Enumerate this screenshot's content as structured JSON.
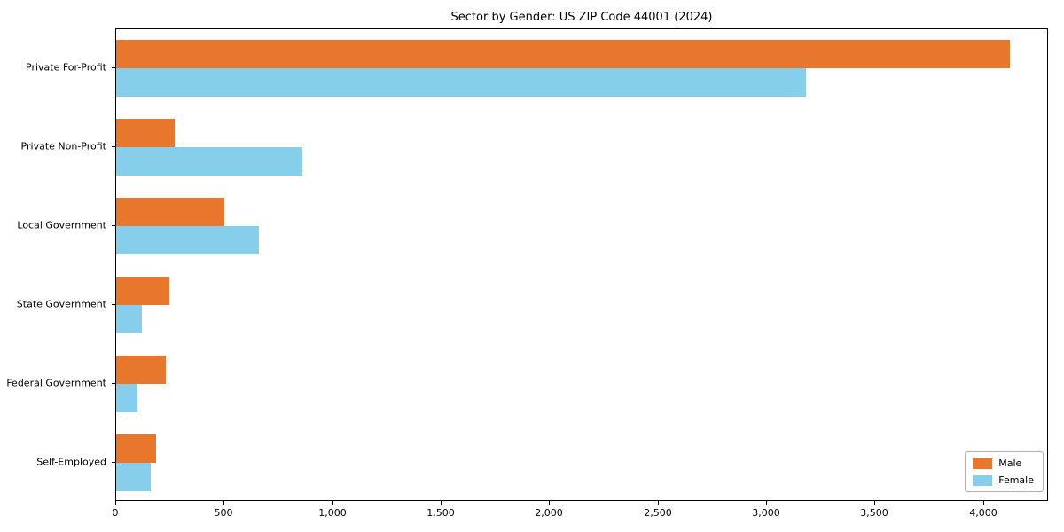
{
  "title": "Sector by Gender: US ZIP Code 44001 (2024)",
  "chart_data": {
    "type": "bar",
    "orientation": "horizontal",
    "title": "Sector by Gender: US ZIP Code 44001 (2024)",
    "categories": [
      "Private For-Profit",
      "Private Non-Profit",
      "Local Government",
      "State Government",
      "Federal Government",
      "Self-Employed"
    ],
    "series": [
      {
        "name": "Male",
        "color": "#e8762d",
        "values": [
          4120,
          270,
          500,
          245,
          230,
          185
        ]
      },
      {
        "name": "Female",
        "color": "#87ceeb",
        "values": [
          3180,
          860,
          660,
          120,
          100,
          160
        ]
      }
    ],
    "xlim": [
      0,
      4300
    ],
    "xticks": [
      0,
      500,
      1000,
      1500,
      2000,
      2500,
      3000,
      3500,
      4000
    ],
    "xtick_labels": [
      "0",
      "500",
      "1,000",
      "1,500",
      "2,000",
      "2,500",
      "3,000",
      "3,500",
      "4,000"
    ],
    "xlabel": "",
    "ylabel": "",
    "grid": false,
    "legend": {
      "position": "lower right",
      "entries": [
        "Male",
        "Female"
      ]
    }
  }
}
